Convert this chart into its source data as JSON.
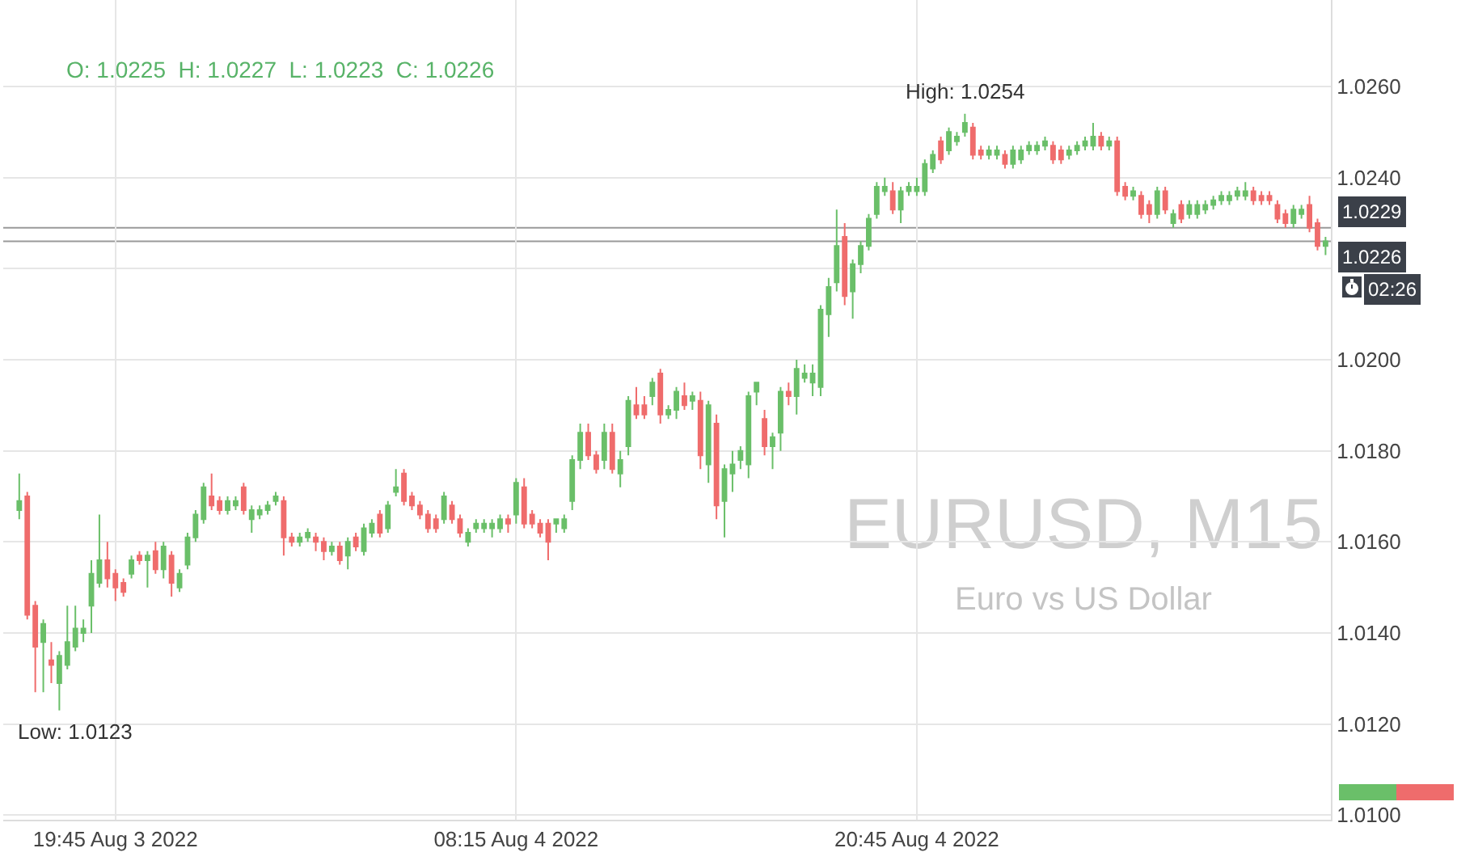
{
  "chart_data": {
    "type": "candlestick",
    "title": "EURUSD, M15",
    "subtitle": "Euro vs US Dollar",
    "x": [
      "2022-08-03T16:45",
      "2022-08-03T17:00",
      "2022-08-03T17:15",
      "2022-08-03T17:30",
      "2022-08-03T17:45",
      "2022-08-03T18:00",
      "2022-08-03T18:15",
      "2022-08-03T18:30",
      "2022-08-03T18:45",
      "2022-08-03T19:00",
      "2022-08-03T19:15",
      "2022-08-03T19:30",
      "2022-08-03T19:45",
      "2022-08-03T20:00",
      "2022-08-03T20:15",
      "2022-08-03T20:30",
      "2022-08-03T20:45",
      "2022-08-03T21:00",
      "2022-08-03T21:15",
      "2022-08-03T21:30",
      "2022-08-03T21:45",
      "2022-08-03T22:00",
      "2022-08-03T22:15",
      "2022-08-03T22:30",
      "2022-08-03T22:45",
      "2022-08-03T23:00",
      "2022-08-03T23:15",
      "2022-08-03T23:30",
      "2022-08-03T23:45",
      "2022-08-04T00:00",
      "2022-08-04T00:15",
      "2022-08-04T00:30",
      "2022-08-04T00:45",
      "2022-08-04T01:00",
      "2022-08-04T01:15",
      "2022-08-04T01:30",
      "2022-08-04T01:45",
      "2022-08-04T02:00",
      "2022-08-04T02:15",
      "2022-08-04T02:30",
      "2022-08-04T02:45",
      "2022-08-04T03:00",
      "2022-08-04T03:15",
      "2022-08-04T03:30",
      "2022-08-04T03:45",
      "2022-08-04T04:00",
      "2022-08-04T04:15",
      "2022-08-04T04:30",
      "2022-08-04T04:45",
      "2022-08-04T05:00",
      "2022-08-04T05:15",
      "2022-08-04T05:30",
      "2022-08-04T05:45",
      "2022-08-04T06:00",
      "2022-08-04T06:15",
      "2022-08-04T06:30",
      "2022-08-04T06:45",
      "2022-08-04T07:00",
      "2022-08-04T07:15",
      "2022-08-04T07:30",
      "2022-08-04T07:45",
      "2022-08-04T08:00",
      "2022-08-04T08:15",
      "2022-08-04T08:30",
      "2022-08-04T08:45",
      "2022-08-04T09:00",
      "2022-08-04T09:15",
      "2022-08-04T09:30",
      "2022-08-04T09:45",
      "2022-08-04T10:00",
      "2022-08-04T10:15",
      "2022-08-04T10:30",
      "2022-08-04T10:45",
      "2022-08-04T11:00",
      "2022-08-04T11:15",
      "2022-08-04T11:30",
      "2022-08-04T11:45",
      "2022-08-04T12:00",
      "2022-08-04T12:15",
      "2022-08-04T12:30",
      "2022-08-04T12:45",
      "2022-08-04T13:00",
      "2022-08-04T13:15",
      "2022-08-04T13:30",
      "2022-08-04T13:45",
      "2022-08-04T14:00",
      "2022-08-04T14:15",
      "2022-08-04T14:30",
      "2022-08-04T14:45",
      "2022-08-04T15:00",
      "2022-08-04T15:15",
      "2022-08-04T15:30",
      "2022-08-04T15:45",
      "2022-08-04T16:00",
      "2022-08-04T16:15",
      "2022-08-04T16:30",
      "2022-08-04T16:45",
      "2022-08-04T17:00",
      "2022-08-04T17:15",
      "2022-08-04T17:30",
      "2022-08-04T17:45",
      "2022-08-04T18:00",
      "2022-08-04T18:15",
      "2022-08-04T18:30",
      "2022-08-04T18:45",
      "2022-08-04T19:00",
      "2022-08-04T19:15",
      "2022-08-04T19:30",
      "2022-08-04T19:45",
      "2022-08-04T20:00",
      "2022-08-04T20:15",
      "2022-08-04T20:30",
      "2022-08-04T20:45",
      "2022-08-04T21:00",
      "2022-08-04T21:15",
      "2022-08-04T21:30",
      "2022-08-04T21:45",
      "2022-08-04T22:00",
      "2022-08-04T22:15",
      "2022-08-04T22:30",
      "2022-08-04T22:45",
      "2022-08-04T23:00",
      "2022-08-04T23:15",
      "2022-08-04T23:30",
      "2022-08-04T23:45",
      "2022-08-05T00:00",
      "2022-08-05T00:15",
      "2022-08-05T00:30",
      "2022-08-05T00:45",
      "2022-08-05T01:00",
      "2022-08-05T01:15",
      "2022-08-05T01:30",
      "2022-08-05T01:45",
      "2022-08-05T02:00",
      "2022-08-05T02:15",
      "2022-08-05T02:30",
      "2022-08-05T02:45",
      "2022-08-05T03:00",
      "2022-08-05T03:15",
      "2022-08-05T03:30",
      "2022-08-05T03:45",
      "2022-08-05T04:00",
      "2022-08-05T04:15",
      "2022-08-05T04:30",
      "2022-08-05T04:45",
      "2022-08-05T05:00",
      "2022-08-05T05:15",
      "2022-08-05T05:30",
      "2022-08-05T05:45",
      "2022-08-05T06:00",
      "2022-08-05T06:15",
      "2022-08-05T06:30",
      "2022-08-05T06:45",
      "2022-08-05T07:00",
      "2022-08-05T07:15",
      "2022-08-05T07:30",
      "2022-08-05T07:45",
      "2022-08-05T08:00",
      "2022-08-05T08:15",
      "2022-08-05T08:30",
      "2022-08-05T08:45",
      "2022-08-05T09:00",
      "2022-08-05T09:15",
      "2022-08-05T09:30"
    ],
    "ohlc": [
      [
        1.0167,
        1.0175,
        1.0165,
        1.0169
      ],
      [
        1.017,
        1.0171,
        1.0143,
        1.0144
      ],
      [
        1.0146,
        1.0147,
        1.0127,
        1.0137
      ],
      [
        1.0138,
        1.0143,
        1.0127,
        1.0142
      ],
      [
        1.0134,
        1.0138,
        1.0129,
        1.0133
      ],
      [
        1.0129,
        1.0136,
        1.0123,
        1.0135
      ],
      [
        1.0133,
        1.0146,
        1.0132,
        1.0138
      ],
      [
        1.0137,
        1.0146,
        1.0136,
        1.0141
      ],
      [
        1.014,
        1.0143,
        1.0138,
        1.0141
      ],
      [
        1.0146,
        1.0156,
        1.014,
        1.0153
      ],
      [
        1.0151,
        1.0166,
        1.015,
        1.0156
      ],
      [
        1.0156,
        1.016,
        1.015,
        1.0152
      ],
      [
        1.0153,
        1.0154,
        1.0147,
        1.015
      ],
      [
        1.0151,
        1.0152,
        1.0148,
        1.0149
      ],
      [
        1.0153,
        1.0157,
        1.0152,
        1.0156
      ],
      [
        1.0157,
        1.0158,
        1.0155,
        1.0156
      ],
      [
        1.0156,
        1.0158,
        1.015,
        1.0157
      ],
      [
        1.0158,
        1.016,
        1.0153,
        1.0154
      ],
      [
        1.0154,
        1.016,
        1.0152,
        1.0159
      ],
      [
        1.0157,
        1.0158,
        1.0148,
        1.0151
      ],
      [
        1.015,
        1.0154,
        1.0149,
        1.0153
      ],
      [
        1.0155,
        1.0162,
        1.0154,
        1.0161
      ],
      [
        1.0161,
        1.0167,
        1.016,
        1.0166
      ],
      [
        1.0165,
        1.0173,
        1.0164,
        1.0172
      ],
      [
        1.017,
        1.0175,
        1.0167,
        1.0168
      ],
      [
        1.0169,
        1.017,
        1.0166,
        1.0167
      ],
      [
        1.0167,
        1.017,
        1.0166,
        1.0169
      ],
      [
        1.0168,
        1.017,
        1.0167,
        1.0169
      ],
      [
        1.0172,
        1.0173,
        1.0166,
        1.0167
      ],
      [
        1.0165,
        1.0168,
        1.0162,
        1.0167
      ],
      [
        1.0166,
        1.0168,
        1.0165,
        1.0167
      ],
      [
        1.0167,
        1.0169,
        1.0166,
        1.0168
      ],
      [
        1.0169,
        1.0171,
        1.0168,
        1.017
      ],
      [
        1.0169,
        1.017,
        1.0157,
        1.0161
      ],
      [
        1.0161,
        1.0162,
        1.0159,
        1.016
      ],
      [
        1.016,
        1.0162,
        1.0159,
        1.0161
      ],
      [
        1.0161,
        1.0163,
        1.016,
        1.0162
      ],
      [
        1.0161,
        1.0162,
        1.0158,
        1.016
      ],
      [
        1.016,
        1.0161,
        1.0156,
        1.0158
      ],
      [
        1.0158,
        1.016,
        1.0157,
        1.0159
      ],
      [
        1.0159,
        1.016,
        1.0155,
        1.0156
      ],
      [
        1.0157,
        1.0161,
        1.0154,
        1.016
      ],
      [
        1.0161,
        1.0162,
        1.0158,
        1.0159
      ],
      [
        1.0158,
        1.0164,
        1.0157,
        1.0163
      ],
      [
        1.0162,
        1.0165,
        1.0161,
        1.0164
      ],
      [
        1.0166,
        1.0167,
        1.0161,
        1.0162
      ],
      [
        1.0163,
        1.0169,
        1.0162,
        1.0168
      ],
      [
        1.0171,
        1.0176,
        1.017,
        1.0172
      ],
      [
        1.0175,
        1.0176,
        1.0168,
        1.0169
      ],
      [
        1.017,
        1.0171,
        1.0167,
        1.0168
      ],
      [
        1.0168,
        1.0169,
        1.0165,
        1.0166
      ],
      [
        1.0166,
        1.0167,
        1.0162,
        1.0163
      ],
      [
        1.0165,
        1.0166,
        1.0162,
        1.0163
      ],
      [
        1.0165,
        1.0171,
        1.0164,
        1.017
      ],
      [
        1.0168,
        1.0169,
        1.0164,
        1.0165
      ],
      [
        1.0165,
        1.0166,
        1.0161,
        1.0162
      ],
      [
        1.016,
        1.0163,
        1.0159,
        1.0162
      ],
      [
        1.0163,
        1.0165,
        1.0162,
        1.0164
      ],
      [
        1.0163,
        1.0165,
        1.0162,
        1.0164
      ],
      [
        1.0163,
        1.0165,
        1.0161,
        1.0164
      ],
      [
        1.0163,
        1.0166,
        1.0162,
        1.0165
      ],
      [
        1.0165,
        1.0166,
        1.0162,
        1.0164
      ],
      [
        1.0166,
        1.0174,
        1.0164,
        1.0173
      ],
      [
        1.0172,
        1.0174,
        1.0163,
        1.0164
      ],
      [
        1.0166,
        1.0167,
        1.0163,
        1.0164
      ],
      [
        1.0164,
        1.0165,
        1.0161,
        1.0162
      ],
      [
        1.0164,
        1.0165,
        1.0156,
        1.016
      ],
      [
        1.0164,
        1.0165,
        1.0162,
        1.0165
      ],
      [
        1.0163,
        1.0166,
        1.0162,
        1.0165
      ],
      [
        1.0169,
        1.0179,
        1.0167,
        1.0178
      ],
      [
        1.0178,
        1.0186,
        1.0176,
        1.0184
      ],
      [
        1.0184,
        1.0186,
        1.0178,
        1.0179
      ],
      [
        1.0179,
        1.018,
        1.0175,
        1.0176
      ],
      [
        1.0178,
        1.0186,
        1.0176,
        1.0184
      ],
      [
        1.0184,
        1.0186,
        1.0175,
        1.0176
      ],
      [
        1.0175,
        1.018,
        1.0172,
        1.0178
      ],
      [
        1.0181,
        1.0192,
        1.0179,
        1.0191
      ],
      [
        1.019,
        1.0194,
        1.0187,
        1.0188
      ],
      [
        1.019,
        1.0192,
        1.0187,
        1.0188
      ],
      [
        1.0192,
        1.0196,
        1.019,
        1.0195
      ],
      [
        1.0197,
        1.0198,
        1.0186,
        1.0188
      ],
      [
        1.0188,
        1.019,
        1.0187,
        1.0189
      ],
      [
        1.0189,
        1.0194,
        1.0187,
        1.0193
      ],
      [
        1.0192,
        1.0195,
        1.0189,
        1.019
      ],
      [
        1.0191,
        1.0193,
        1.0189,
        1.0192
      ],
      [
        1.0191,
        1.0193,
        1.0176,
        1.0179
      ],
      [
        1.0177,
        1.0191,
        1.0173,
        1.019
      ],
      [
        1.0186,
        1.0188,
        1.0165,
        1.0168
      ],
      [
        1.0169,
        1.0177,
        1.0161,
        1.0176
      ],
      [
        1.0175,
        1.018,
        1.0171,
        1.0177
      ],
      [
        1.0178,
        1.0181,
        1.0176,
        1.018
      ],
      [
        1.0177,
        1.0193,
        1.0174,
        1.0192
      ],
      [
        1.0193,
        1.0195,
        1.019,
        1.0195
      ],
      [
        1.0187,
        1.0189,
        1.0179,
        1.0181
      ],
      [
        1.0181,
        1.0184,
        1.0176,
        1.0183
      ],
      [
        1.0184,
        1.0194,
        1.018,
        1.0193
      ],
      [
        1.0193,
        1.0195,
        1.019,
        1.0192
      ],
      [
        1.0192,
        1.02,
        1.0188,
        1.0198
      ],
      [
        1.0196,
        1.0199,
        1.0195,
        1.0197
      ],
      [
        1.0195,
        1.0199,
        1.0192,
        1.0197
      ],
      [
        1.0194,
        1.0212,
        1.0192,
        1.0211
      ],
      [
        1.021,
        1.0218,
        1.0205,
        1.0216
      ],
      [
        1.0217,
        1.0233,
        1.0215,
        1.0225
      ],
      [
        1.0227,
        1.023,
        1.0212,
        1.0214
      ],
      [
        1.0215,
        1.0222,
        1.0209,
        1.0221
      ],
      [
        1.0221,
        1.0226,
        1.0219,
        1.0225
      ],
      [
        1.0225,
        1.0232,
        1.0224,
        1.0231
      ],
      [
        1.0232,
        1.0239,
        1.0231,
        1.0238
      ],
      [
        1.0237,
        1.024,
        1.0236,
        1.0238
      ],
      [
        1.0237,
        1.0239,
        1.0232,
        1.0233
      ],
      [
        1.0233,
        1.0238,
        1.023,
        1.0237
      ],
      [
        1.0237,
        1.0239,
        1.0236,
        1.0238
      ],
      [
        1.0237,
        1.024,
        1.0236,
        1.0238
      ],
      [
        1.0237,
        1.0244,
        1.0236,
        1.0243
      ],
      [
        1.0242,
        1.0246,
        1.0241,
        1.0245
      ],
      [
        1.0248,
        1.0249,
        1.0243,
        1.0244
      ],
      [
        1.0246,
        1.0251,
        1.0245,
        1.025
      ],
      [
        1.0248,
        1.025,
        1.0247,
        1.0249
      ],
      [
        1.025,
        1.0254,
        1.0249,
        1.0252
      ],
      [
        1.0251,
        1.0252,
        1.0244,
        1.0245
      ],
      [
        1.0246,
        1.0247,
        1.0244,
        1.0245
      ],
      [
        1.0245,
        1.0247,
        1.0244,
        1.0246
      ],
      [
        1.0245,
        1.0247,
        1.0244,
        1.0246
      ],
      [
        1.0245,
        1.0246,
        1.0242,
        1.0243
      ],
      [
        1.0243,
        1.0247,
        1.0242,
        1.0246
      ],
      [
        1.0244,
        1.0247,
        1.0243,
        1.0246
      ],
      [
        1.0246,
        1.0248,
        1.0245,
        1.0247
      ],
      [
        1.0246,
        1.0248,
        1.0245,
        1.0247
      ],
      [
        1.0247,
        1.0249,
        1.0246,
        1.0248
      ],
      [
        1.0247,
        1.0248,
        1.0243,
        1.0244
      ],
      [
        1.0246,
        1.0247,
        1.0243,
        1.0244
      ],
      [
        1.0245,
        1.0247,
        1.0244,
        1.0246
      ],
      [
        1.0246,
        1.0248,
        1.0245,
        1.0247
      ],
      [
        1.0247,
        1.0249,
        1.0246,
        1.0248
      ],
      [
        1.0247,
        1.0252,
        1.0246,
        1.0249
      ],
      [
        1.0249,
        1.025,
        1.0246,
        1.0247
      ],
      [
        1.0247,
        1.0249,
        1.0246,
        1.0248
      ],
      [
        1.0248,
        1.0249,
        1.0236,
        1.0237
      ],
      [
        1.0238,
        1.0239,
        1.0235,
        1.0236
      ],
      [
        1.0236,
        1.0238,
        1.0235,
        1.0237
      ],
      [
        1.0236,
        1.0237,
        1.0231,
        1.0232
      ],
      [
        1.0234,
        1.0235,
        1.023,
        1.0232
      ],
      [
        1.0232,
        1.0238,
        1.0231,
        1.0237
      ],
      [
        1.0237,
        1.0238,
        1.0232,
        1.0233
      ],
      [
        1.023,
        1.0233,
        1.0229,
        1.0232
      ],
      [
        1.0234,
        1.0235,
        1.023,
        1.0231
      ],
      [
        1.0232,
        1.0235,
        1.0231,
        1.0234
      ],
      [
        1.0232,
        1.0235,
        1.0231,
        1.0234
      ],
      [
        1.0233,
        1.0235,
        1.0232,
        1.0234
      ],
      [
        1.0234,
        1.0236,
        1.0233,
        1.0235
      ],
      [
        1.0235,
        1.0237,
        1.0234,
        1.0236
      ],
      [
        1.0235,
        1.0237,
        1.0234,
        1.0236
      ],
      [
        1.0236,
        1.0238,
        1.0235,
        1.0237
      ],
      [
        1.0236,
        1.0239,
        1.0235,
        1.0237
      ],
      [
        1.0237,
        1.0238,
        1.0234,
        1.0235
      ],
      [
        1.0236,
        1.0237,
        1.0234,
        1.0235
      ],
      [
        1.0236,
        1.0237,
        1.0234,
        1.0235
      ],
      [
        1.0234,
        1.0235,
        1.023,
        1.0231
      ],
      [
        1.0232,
        1.0233,
        1.0229,
        1.023
      ],
      [
        1.023,
        1.0234,
        1.0229,
        1.0233
      ],
      [
        1.0232,
        1.0234,
        1.0231,
        1.0233
      ],
      [
        1.0234,
        1.0236,
        1.0228,
        1.0229
      ],
      [
        1.023,
        1.0231,
        1.0224,
        1.0225
      ],
      [
        1.0225,
        1.0227,
        1.0223,
        1.0226
      ]
    ],
    "colors": [
      "#6abf69",
      "#ef6c6c",
      "#ef6c6c",
      "#6abf69",
      "#ef6c6c",
      "#6abf69",
      "#6abf69",
      "#6abf69",
      "#6abf69",
      "#6abf69",
      "#6abf69",
      "#ef6c6c",
      "#ef6c6c",
      "#ef6c6c",
      "#6abf69",
      "#ef6c6c",
      "#6abf69",
      "#ef6c6c",
      "#6abf69",
      "#ef6c6c",
      "#6abf69",
      "#6abf69",
      "#6abf69",
      "#6abf69",
      "#ef6c6c",
      "#ef6c6c",
      "#6abf69",
      "#6abf69",
      "#ef6c6c",
      "#6abf69",
      "#6abf69",
      "#6abf69",
      "#6abf69",
      "#ef6c6c",
      "#ef6c6c",
      "#6abf69",
      "#6abf69",
      "#ef6c6c",
      "#ef6c6c",
      "#6abf69",
      "#ef6c6c",
      "#6abf69",
      "#ef6c6c",
      "#6abf69",
      "#6abf69",
      "#ef6c6c",
      "#6abf69",
      "#6abf69",
      "#ef6c6c",
      "#ef6c6c",
      "#ef6c6c",
      "#ef6c6c",
      "#ef6c6c",
      "#6abf69",
      "#ef6c6c",
      "#ef6c6c",
      "#6abf69",
      "#6abf69",
      "#6abf69",
      "#6abf69",
      "#6abf69",
      "#ef6c6c",
      "#6abf69",
      "#ef6c6c",
      "#ef6c6c",
      "#ef6c6c",
      "#ef6c6c",
      "#6abf69",
      "#6abf69",
      "#6abf69",
      "#6abf69",
      "#ef6c6c",
      "#ef6c6c",
      "#6abf69",
      "#ef6c6c",
      "#6abf69",
      "#6abf69",
      "#ef6c6c",
      "#ef6c6c",
      "#6abf69",
      "#ef6c6c",
      "#6abf69",
      "#6abf69",
      "#ef6c6c",
      "#6abf69",
      "#ef6c6c",
      "#6abf69",
      "#ef6c6c",
      "#6abf69",
      "#6abf69",
      "#6abf69",
      "#6abf69",
      "#6abf69",
      "#ef6c6c",
      "#6abf69",
      "#6abf69",
      "#ef6c6c",
      "#6abf69",
      "#6abf69",
      "#6abf69",
      "#6abf69",
      "#6abf69",
      "#6abf69",
      "#ef6c6c",
      "#6abf69",
      "#6abf69",
      "#6abf69",
      "#6abf69",
      "#6abf69",
      "#ef6c6c",
      "#6abf69",
      "#6abf69",
      "#6abf69",
      "#6abf69",
      "#6abf69",
      "#ef6c6c",
      "#6abf69",
      "#6abf69",
      "#6abf69",
      "#ef6c6c",
      "#ef6c6c",
      "#6abf69",
      "#6abf69",
      "#ef6c6c",
      "#6abf69",
      "#6abf69",
      "#6abf69",
      "#6abf69",
      "#6abf69",
      "#ef6c6c",
      "#ef6c6c",
      "#6abf69",
      "#6abf69",
      "#6abf69",
      "#6abf69",
      "#ef6c6c",
      "#6abf69",
      "#ef6c6c",
      "#ef6c6c",
      "#6abf69",
      "#ef6c6c",
      "#ef6c6c",
      "#6abf69",
      "#ef6c6c",
      "#6abf69",
      "#ef6c6c",
      "#6abf69",
      "#6abf69",
      "#6abf69",
      "#6abf69",
      "#6abf69",
      "#6abf69",
      "#6abf69",
      "#6abf69",
      "#ef6c6c",
      "#ef6c6c",
      "#ef6c6c",
      "#ef6c6c",
      "#ef6c6c",
      "#6abf69",
      "#6abf69",
      "#ef6c6c",
      "#ef6c6c",
      "#6abf69"
    ],
    "xlim": [
      "2022-08-03T16:15",
      "2022-08-05T09:40"
    ],
    "xticks": [
      {
        "value": "2022-08-03T19:45",
        "label": "19:45 Aug 3 2022"
      },
      {
        "value": "2022-08-04T08:15",
        "label": "08:15 Aug 4 2022"
      },
      {
        "value": "2022-08-04T20:45",
        "label": "20:45 Aug 4 2022"
      }
    ],
    "ylim": [
      1.0099,
      1.0279
    ],
    "yticks": [
      {
        "value": 1.01,
        "label": "1.0100"
      },
      {
        "value": 1.012,
        "label": "1.0120"
      },
      {
        "value": 1.014,
        "label": "1.0140"
      },
      {
        "value": 1.016,
        "label": "1.0160"
      },
      {
        "value": 1.018,
        "label": "1.0180"
      },
      {
        "value": 1.02,
        "label": "1.0200"
      },
      {
        "value": 1.022,
        "label": null
      },
      {
        "value": 1.024,
        "label": "1.0240"
      },
      {
        "value": 1.026,
        "label": "1.0260"
      }
    ],
    "grid": true,
    "ref_lines": [
      {
        "axis": "y",
        "value": 1.0229,
        "label": "1.0229",
        "color": "#9a9a9a"
      },
      {
        "axis": "y",
        "value": 1.0226,
        "label": "1.0226",
        "color": "#9a9a9a"
      }
    ],
    "annotations": [
      "O: 1.0225  H: 1.0227  L: 1.0223  C: 1.0226",
      "02:26",
      {
        "text": "High: 1.0254",
        "x": "2022-08-04T22:15",
        "y": 1.0254
      },
      {
        "text": "Low: 1.0123",
        "x": "2022-08-03T18:00",
        "y": 1.0123
      }
    ]
  }
}
